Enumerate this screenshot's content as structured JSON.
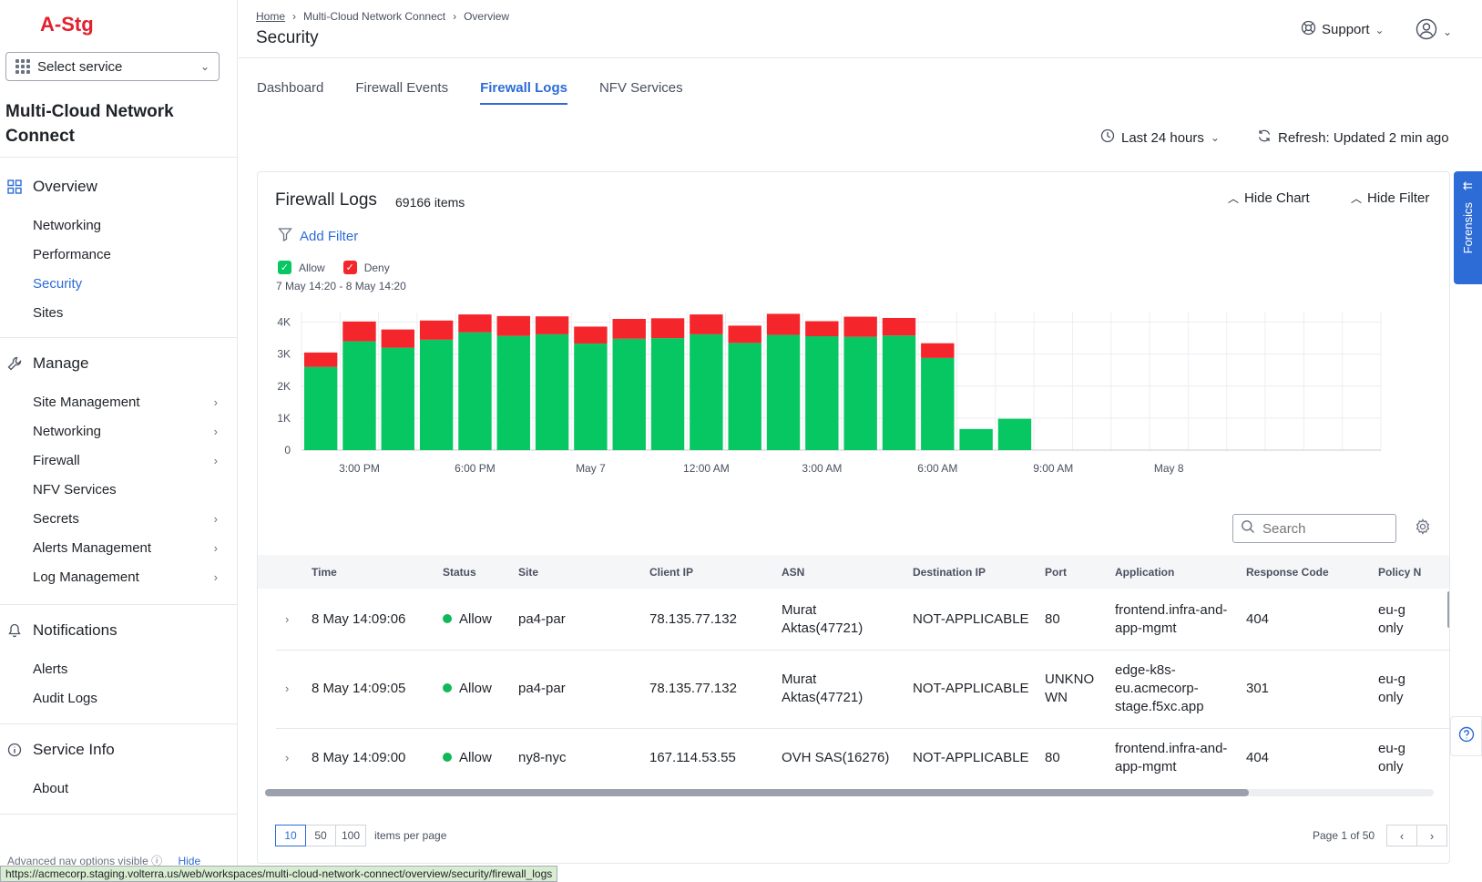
{
  "sidebar": {
    "brand": "A-Stg",
    "select_service": "Select service",
    "workspace_title": "Multi-Cloud Network Connect",
    "groups": {
      "overview": {
        "label": "Overview",
        "items": [
          "Networking",
          "Performance",
          "Security",
          "Sites"
        ]
      },
      "manage": {
        "label": "Manage",
        "items": [
          "Site Management",
          "Networking",
          "Firewall",
          "NFV Services",
          "Secrets",
          "Alerts Management",
          "Log Management"
        ]
      },
      "notifications": {
        "label": "Notifications",
        "items": [
          "Alerts",
          "Audit Logs"
        ]
      },
      "service_info": {
        "label": "Service Info",
        "items": [
          "About"
        ]
      }
    },
    "advanced_text": "Advanced nav options visible",
    "hide_label": "Hide"
  },
  "header": {
    "breadcrumb": [
      "Home",
      "Multi-Cloud Network Connect",
      "Overview"
    ],
    "title": "Security",
    "support": "Support"
  },
  "tabs": [
    "Dashboard",
    "Firewall Events",
    "Firewall Logs",
    "NFV Services"
  ],
  "active_tab": "Firewall Logs",
  "controls": {
    "time_range": "Last 24 hours",
    "refresh": "Refresh: Updated 2 min ago"
  },
  "card": {
    "title": "Firewall Logs",
    "count": "69166 items",
    "hide_chart": "Hide Chart",
    "hide_filter": "Hide Filter",
    "add_filter": "Add Filter",
    "date_range": "7 May 14:20 - 8 May 14:20",
    "search_placeholder": "Search"
  },
  "chart_data": {
    "type": "bar",
    "stacked": true,
    "y_ticks": [
      "0",
      "1K",
      "2K",
      "3K",
      "4K"
    ],
    "ylim": [
      0,
      4300
    ],
    "x_tick_labels": [
      "3:00 PM",
      "6:00 PM",
      "May 7",
      "12:00 AM",
      "3:00 AM",
      "6:00 AM",
      "9:00 AM",
      "May 8"
    ],
    "series": [
      {
        "name": "Allow",
        "color": "#06c762",
        "values": [
          2600,
          3400,
          3200,
          3450,
          3680,
          3570,
          3620,
          3330,
          3480,
          3500,
          3620,
          3350,
          3600,
          3560,
          3540,
          3580,
          2880,
          660,
          980,
          0,
          0,
          0,
          0,
          0,
          0,
          0,
          0,
          0
        ]
      },
      {
        "name": "Deny",
        "color": "#f4262c",
        "values": [
          450,
          620,
          570,
          600,
          560,
          620,
          560,
          530,
          620,
          620,
          620,
          540,
          660,
          470,
          630,
          550,
          460,
          0,
          0,
          0,
          0,
          0,
          0,
          0,
          0,
          0,
          0,
          0
        ]
      }
    ],
    "legend": [
      {
        "name": "Allow",
        "color": "#06c762"
      },
      {
        "name": "Deny",
        "color": "#f4262c"
      }
    ]
  },
  "table": {
    "columns": [
      "Time",
      "Status",
      "Site",
      "Client IP",
      "ASN",
      "Destination IP",
      "Port",
      "Application",
      "Response Code",
      "Policy N"
    ],
    "rows": [
      {
        "time": "8 May 14:09:06",
        "status": "Allow",
        "site": "pa4-par",
        "client_ip": "78.135.77.132",
        "asn": [
          "Murat",
          "Aktas(47721)"
        ],
        "dest_ip": "NOT-APPLICABLE",
        "port": [
          "80"
        ],
        "app": [
          "frontend.infra-and-",
          "app-mgmt"
        ],
        "code": "404",
        "policy": [
          "eu-g",
          "only"
        ]
      },
      {
        "time": "8 May 14:09:05",
        "status": "Allow",
        "site": "pa4-par",
        "client_ip": "78.135.77.132",
        "asn": [
          "Murat",
          "Aktas(47721)"
        ],
        "dest_ip": "NOT-APPLICABLE",
        "port": [
          "UNKNO",
          "WN"
        ],
        "app": [
          "edge-k8s-",
          "eu.acmecorp-",
          "stage.f5xc.app"
        ],
        "code": "301",
        "policy": [
          "eu-g",
          "only"
        ]
      },
      {
        "time": "8 May 14:09:00",
        "status": "Allow",
        "site": "ny8-nyc",
        "client_ip": "167.114.53.55",
        "asn": [
          "OVH SAS(16276)"
        ],
        "dest_ip": "NOT-APPLICABLE",
        "port": [
          "80"
        ],
        "app": [
          "frontend.infra-and-",
          "app-mgmt"
        ],
        "code": "404",
        "policy": [
          "eu-g",
          "only"
        ]
      }
    ]
  },
  "pagination": {
    "sizes": [
      "10",
      "50",
      "100"
    ],
    "items_per_page": "items per page",
    "page_of": "Page 1 of 50"
  },
  "forensics_label": "Forensics",
  "status_url": "https://acmecorp.staging.volterra.us/web/workspaces/multi-cloud-network-connect/overview/security/firewall_logs",
  "colors": {
    "accent": "#2d6bd6",
    "brand": "#e3202d",
    "allow": "#06c762",
    "deny": "#f4262c"
  }
}
